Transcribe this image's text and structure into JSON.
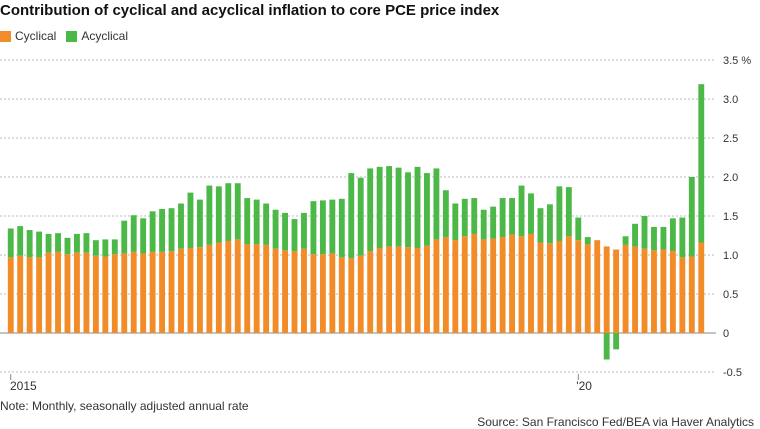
{
  "chart_data": {
    "type": "bar",
    "stacked": true,
    "title": "Contribution of cyclical and acyclical inflation to core PCE price index",
    "xlabel": "",
    "ylabel": "",
    "y_unit": "%",
    "ylim": [
      -0.5,
      3.5
    ],
    "y_ticks": [
      -0.5,
      0,
      0.5,
      1.0,
      1.5,
      2.0,
      2.5,
      3.0,
      3.5
    ],
    "y_tick_labels": [
      "-0.5",
      "0",
      "0.5",
      "1.0",
      "1.5",
      "2.0",
      "2.5",
      "3.0",
      "3.5 %"
    ],
    "x_tick_labels": [
      {
        "label": "2015",
        "index": 0
      },
      {
        "label": "'20",
        "index": 60
      }
    ],
    "grid": true,
    "legend_position": "top-left",
    "series": [
      {
        "name": "Cyclical",
        "color": "#f28c28",
        "values": [
          0.97,
          0.99,
          0.97,
          0.97,
          1.03,
          1.04,
          1.01,
          1.03,
          1.03,
          0.99,
          0.98,
          1.01,
          1.02,
          1.04,
          1.02,
          1.04,
          1.04,
          1.05,
          1.08,
          1.09,
          1.1,
          1.13,
          1.16,
          1.18,
          1.2,
          1.14,
          1.14,
          1.13,
          1.08,
          1.06,
          1.05,
          1.08,
          1.01,
          1.01,
          1.02,
          0.97,
          0.96,
          0.99,
          1.05,
          1.09,
          1.11,
          1.11,
          1.1,
          1.09,
          1.12,
          1.2,
          1.23,
          1.19,
          1.24,
          1.27,
          1.2,
          1.21,
          1.23,
          1.26,
          1.24,
          1.27,
          1.16,
          1.15,
          1.18,
          1.24,
          1.19,
          1.14,
          1.19,
          1.11,
          1.07,
          1.13,
          1.11,
          1.08,
          1.06,
          1.07,
          1.05,
          0.97,
          0.98,
          1.16
        ]
      },
      {
        "name": "Acyclical",
        "color": "#4cb848",
        "values": [
          0.37,
          0.38,
          0.35,
          0.33,
          0.24,
          0.24,
          0.21,
          0.24,
          0.25,
          0.2,
          0.22,
          0.19,
          0.42,
          0.47,
          0.45,
          0.52,
          0.55,
          0.55,
          0.58,
          0.71,
          0.61,
          0.76,
          0.72,
          0.74,
          0.72,
          0.59,
          0.57,
          0.53,
          0.5,
          0.48,
          0.41,
          0.46,
          0.68,
          0.69,
          0.69,
          0.75,
          1.09,
          1.0,
          1.06,
          1.04,
          1.03,
          1.01,
          0.96,
          1.04,
          0.93,
          0.91,
          0.6,
          0.47,
          0.48,
          0.46,
          0.38,
          0.41,
          0.5,
          0.47,
          0.65,
          0.52,
          0.44,
          0.5,
          0.7,
          0.63,
          0.29,
          0.09,
          0.0,
          -0.34,
          -0.21,
          0.11,
          0.29,
          0.42,
          0.3,
          0.29,
          0.42,
          0.51,
          1.02,
          2.03
        ]
      }
    ]
  },
  "legend": {
    "cyclical_label": "Cyclical",
    "acyclical_label": "Acyclical"
  },
  "footnote": "Note: Monthly, seasonally adjusted annual rate",
  "source": "Source: San Francisco Fed/BEA via Haver Analytics"
}
